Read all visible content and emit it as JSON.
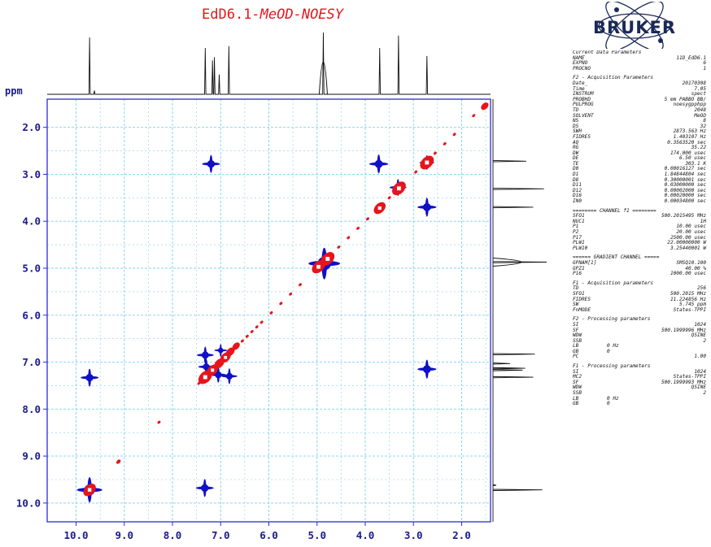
{
  "title": {
    "main": "EdD6.1",
    "sub": "-MeOD-NOESY"
  },
  "logo": {
    "text": "BRUKER",
    "color": "#1a2a57"
  },
  "colors": {
    "positive": "#e8141b",
    "negative": "#1010c8",
    "frame": "#2b2bd9",
    "grid": "#7fd0f0",
    "axis_text": "#1a1a8a"
  },
  "chart_data": {
    "type": "scatter",
    "ppm_label": "ppm",
    "x_ticks": [
      "10.0",
      "9.0",
      "8.0",
      "7.0",
      "6.0",
      "5.0",
      "4.0",
      "3.0",
      "2.0"
    ],
    "y_ticks": [
      "2.0",
      "3.0",
      "4.0",
      "5.0",
      "6.0",
      "7.0",
      "8.0",
      "9.0",
      "10.0"
    ],
    "x_range": [
      10.6,
      1.4
    ],
    "y_range": [
      1.4,
      10.4
    ],
    "grid": true,
    "projection_peaks": [
      {
        "ppm": 9.72,
        "h": 0.92
      },
      {
        "ppm": 9.62,
        "h": 0.06
      },
      {
        "ppm": 7.32,
        "h": 0.75
      },
      {
        "ppm": 7.17,
        "h": 0.55
      },
      {
        "ppm": 7.13,
        "h": 0.6
      },
      {
        "ppm": 7.03,
        "h": 0.32
      },
      {
        "ppm": 6.83,
        "h": 0.78
      },
      {
        "ppm": 4.87,
        "h": 1.0
      },
      {
        "ppm": 3.7,
        "h": 0.75
      },
      {
        "ppm": 3.31,
        "h": 0.95
      },
      {
        "ppm": 2.72,
        "h": 0.62
      }
    ],
    "series": [
      {
        "name": "positive",
        "diagonal_dots": [
          9.12,
          8.28,
          7.45,
          7.25,
          7.05,
          6.95,
          6.85,
          6.75,
          6.65,
          6.55,
          6.45,
          6.35,
          6.25,
          6.15,
          5.95,
          5.75,
          5.55,
          5.35,
          4.55,
          4.35,
          4.15,
          3.95,
          3.5,
          2.95,
          2.55,
          2.35,
          2.15,
          1.75
        ],
        "peaks": [
          {
            "x": 9.72,
            "y": 9.72,
            "s": 1.0
          },
          {
            "x": 9.12,
            "y": 9.12,
            "s": 0.35
          },
          {
            "x": 7.32,
            "y": 7.32,
            "s": 1.1
          },
          {
            "x": 7.17,
            "y": 7.17,
            "s": 0.9
          },
          {
            "x": 7.03,
            "y": 7.03,
            "s": 0.8
          },
          {
            "x": 6.9,
            "y": 6.9,
            "s": 0.85
          },
          {
            "x": 6.8,
            "y": 6.78,
            "s": 0.7
          },
          {
            "x": 6.68,
            "y": 6.66,
            "s": 0.6
          },
          {
            "x": 4.97,
            "y": 4.97,
            "s": 1.05
          },
          {
            "x": 4.78,
            "y": 4.8,
            "s": 1.1
          },
          {
            "x": 3.7,
            "y": 3.72,
            "s": 0.95
          },
          {
            "x": 3.3,
            "y": 3.3,
            "s": 1.1
          },
          {
            "x": 2.72,
            "y": 2.75,
            "s": 1.1
          },
          {
            "x": 1.52,
            "y": 1.55,
            "s": 0.6
          }
        ]
      },
      {
        "name": "negative",
        "peaks": [
          {
            "x": 7.2,
            "y": 2.78,
            "s": 0.85
          },
          {
            "x": 3.72,
            "y": 2.78,
            "s": 0.9
          },
          {
            "x": 2.72,
            "y": 3.7,
            "s": 0.9
          },
          {
            "x": 2.72,
            "y": 7.15,
            "s": 0.9
          },
          {
            "x": 9.72,
            "y": 7.33,
            "s": 0.85
          },
          {
            "x": 7.33,
            "y": 9.68,
            "s": 0.85
          },
          {
            "x": 4.85,
            "y": 4.9,
            "s": 1.5
          },
          {
            "x": 7.32,
            "y": 6.85,
            "s": 0.8
          },
          {
            "x": 7.3,
            "y": 7.1,
            "s": 0.75
          },
          {
            "x": 7.05,
            "y": 7.27,
            "s": 0.75
          },
          {
            "x": 6.82,
            "y": 7.3,
            "s": 0.75
          },
          {
            "x": 7.0,
            "y": 6.75,
            "s": 0.6
          },
          {
            "x": 9.72,
            "y": 9.72,
            "s": 1.2
          },
          {
            "x": 3.32,
            "y": 3.28,
            "s": 0.8
          },
          {
            "x": 2.72,
            "y": 2.75,
            "s": 0.7
          }
        ]
      }
    ]
  },
  "parameters": [
    {
      "type": "head",
      "text": "Current Data Parameters"
    },
    {
      "k": "NAME",
      "v": "11D_EdD6.1"
    },
    {
      "k": "EXPNO",
      "v": "6"
    },
    {
      "k": "PROCNO",
      "v": "1"
    },
    {
      "type": "gap"
    },
    {
      "type": "head",
      "text": "F2 - Acquisition Parameters"
    },
    {
      "k": "Date_",
      "v": "20170308"
    },
    {
      "k": "Time",
      "v": "7.05"
    },
    {
      "k": "INSTRUM",
      "v": "spect"
    },
    {
      "k": "PROBHD",
      "v": "5 mm PABBO BB/"
    },
    {
      "k": "PULPROG",
      "v": "noesygpphpp"
    },
    {
      "k": "TD",
      "v": "2048"
    },
    {
      "k": "SOLVENT",
      "v": "MeOD"
    },
    {
      "k": "NS",
      "v": "8"
    },
    {
      "k": "DS",
      "v": "32"
    },
    {
      "k": "SWH",
      "v": "2873.563 Hz"
    },
    {
      "k": "FIDRES",
      "v": "1.403107 Hz"
    },
    {
      "k": "AQ",
      "v": "0.3563520 sec"
    },
    {
      "k": "RG",
      "v": "35.22"
    },
    {
      "k": "DW",
      "v": "174.000 usec"
    },
    {
      "k": "DE",
      "v": "6.50 usec"
    },
    {
      "k": "TE",
      "v": "303.1 K"
    },
    {
      "k": "D0",
      "v": "0.00016127 sec"
    },
    {
      "k": "D1",
      "v": "1.84844804 sec"
    },
    {
      "k": "D8",
      "v": "0.30000001 sec"
    },
    {
      "k": "D11",
      "v": "0.03000000 sec"
    },
    {
      "k": "D12",
      "v": "0.00002000 sec"
    },
    {
      "k": "D16",
      "v": "0.00020000 sec"
    },
    {
      "k": "IN0",
      "v": "0.00034800 sec"
    },
    {
      "type": "gap"
    },
    {
      "type": "head",
      "text": "======== CHANNEL f1 ========"
    },
    {
      "k": "SFO1",
      "v": "500.2015495 MHz"
    },
    {
      "k": "NUC1",
      "v": "1H"
    },
    {
      "k": "P1",
      "v": "10.00 usec"
    },
    {
      "k": "P2",
      "v": "20.00 usec"
    },
    {
      "k": "P17",
      "v": "2500.00 usec"
    },
    {
      "k": "PLW1",
      "v": "22.00000000 W"
    },
    {
      "k": "PLW10",
      "v": "3.25440001 W"
    },
    {
      "type": "gap"
    },
    {
      "type": "head",
      "text": "====== GRADIENT CHANNEL ====="
    },
    {
      "k": "GPNAM[1]",
      "v": "SMSQ10.100"
    },
    {
      "k": "GPZ1",
      "v": "40.00 %"
    },
    {
      "k": "P16",
      "v": "1000.00 usec"
    },
    {
      "type": "gap"
    },
    {
      "type": "head",
      "text": "F1 - Acquisition parameters"
    },
    {
      "k": "TD",
      "v": "256"
    },
    {
      "k": "SFO1",
      "v": "500.2015 MHz"
    },
    {
      "k": "FIDRES",
      "v": "11.224856 Hz"
    },
    {
      "k": "SW",
      "v": "5.745 ppm"
    },
    {
      "k": "FnMODE",
      "v": "States-TPPI"
    },
    {
      "type": "gap"
    },
    {
      "type": "head",
      "text": "F2 - Processing parameters"
    },
    {
      "k": "SI",
      "v": "1024"
    },
    {
      "k": "SF",
      "v": "500.1999996 MHz"
    },
    {
      "k": "WDW",
      "v": "QSINE"
    },
    {
      "k": "SSB",
      "v": "2"
    },
    {
      "k": "LB",
      "v": "0 Hz",
      "left": true
    },
    {
      "k": "GB",
      "v": "0",
      "left": true
    },
    {
      "k": "PC",
      "v": "1.00"
    },
    {
      "type": "gap"
    },
    {
      "type": "head",
      "text": "F1 - Processing parameters"
    },
    {
      "k": "SI",
      "v": "1024"
    },
    {
      "k": "MC2",
      "v": "States-TPPI"
    },
    {
      "k": "SF",
      "v": "500.1999993 MHz"
    },
    {
      "k": "WDW",
      "v": "QSINE"
    },
    {
      "k": "SSB",
      "v": "2"
    },
    {
      "k": "LB",
      "v": "0 Hz",
      "left": true
    },
    {
      "k": "GB",
      "v": "0",
      "left": true
    }
  ]
}
